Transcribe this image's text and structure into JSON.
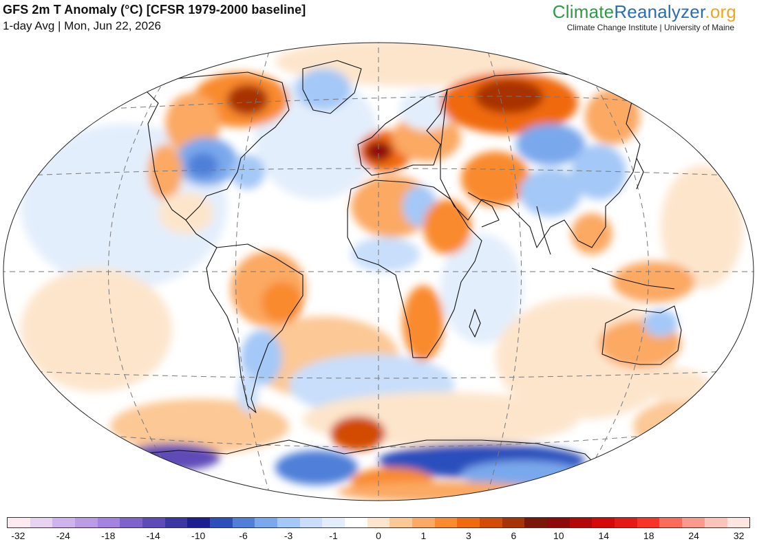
{
  "header": {
    "title": "GFS 2m T Anomaly (°C) [CFSR 1979-2000 baseline]",
    "subtitle": "1-day Avg | Mon, Jun 22, 2026"
  },
  "brand": {
    "part1": "Climate",
    "part2": "Reanalyzer",
    "part3": ".org",
    "tagline": "Climate Change Institute | University of Maine",
    "colors": {
      "part1": "#2f9a46",
      "part2": "#2a6db0",
      "part3": "#f2a51e"
    }
  },
  "map": {
    "projection": "Winkel tripel / Robinson-style world",
    "graticule": "dashed"
  },
  "colorbar": {
    "colors": [
      "#fde9ef",
      "#e7d3f0",
      "#cfb3ec",
      "#bb9be6",
      "#a383df",
      "#7f63cd",
      "#5e4bb8",
      "#3c35a4",
      "#1c1f8f",
      "#2c4fbc",
      "#4f7fd8",
      "#7aa8ec",
      "#a4c8f7",
      "#c8defa",
      "#e3eefc",
      "#ffffff",
      "#fde5cc",
      "#fcc895",
      "#fba964",
      "#f98a2f",
      "#f06a10",
      "#d24c06",
      "#a83304",
      "#7a1706",
      "#8e0a0a",
      "#b40707",
      "#d20a0a",
      "#e61a14",
      "#f83328",
      "#fa6b5a",
      "#fb9a8c",
      "#fcc4b8",
      "#fde6e0"
    ],
    "tick_labels": [
      "-32",
      "-24",
      "-18",
      "-14",
      "-10",
      "-6",
      "-3",
      "-1",
      "0",
      "1",
      "3",
      "6",
      "10",
      "14",
      "18",
      "24",
      "32"
    ]
  }
}
